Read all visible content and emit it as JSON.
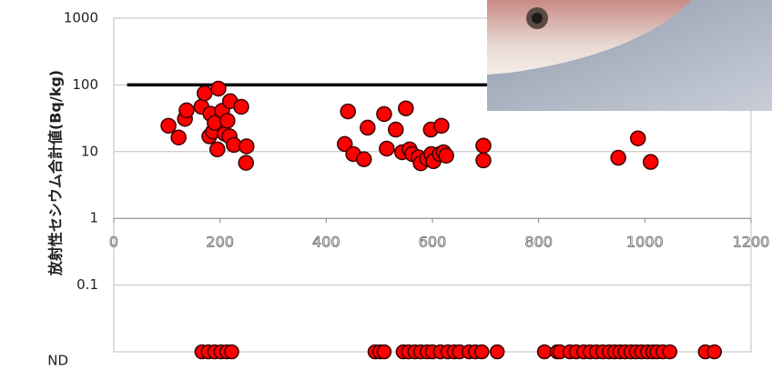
{
  "chart_data": {
    "type": "scatter",
    "ylabel": "放射性セシウム合計値(Bq/kg)",
    "xlim": [
      0,
      1200
    ],
    "xticks": [
      0,
      200,
      400,
      600,
      800,
      1000,
      1200
    ],
    "ylim": [
      0.01,
      1000
    ],
    "log_y": true,
    "yticks": [
      {
        "value": 0.01,
        "label": "ND"
      },
      0.1,
      1,
      10,
      100,
      1000
    ],
    "x_axis_at": 1,
    "grid": true,
    "color": "#ff0000",
    "limit_line": {
      "value": 100,
      "x": [
        25,
        1200
      ],
      "color": "#000000"
    },
    "x": [
      103,
      122,
      134,
      137,
      165,
      171,
      180,
      187,
      182,
      190,
      197,
      195,
      204,
      209,
      214,
      219,
      218,
      226,
      240,
      250,
      249,
      435,
      441,
      451,
      471,
      478,
      509,
      514,
      531,
      543,
      550,
      557,
      562,
      574,
      578,
      590,
      598,
      597,
      602,
      614,
      617,
      621,
      626,
      696,
      696,
      950,
      987,
      1011
    ],
    "y": [
      24.4,
      16.3,
      31,
      41.5,
      47,
      75,
      17,
      20,
      37,
      27,
      88,
      10.8,
      41,
      18.5,
      29,
      57,
      17,
      12.6,
      47,
      12,
      6.8,
      13,
      40,
      9.2,
      7.7,
      22.9,
      36.6,
      11.1,
      21.4,
      9.8,
      44.5,
      10.8,
      9.2,
      8.2,
      6.7,
      7.9,
      9.2,
      21.4,
      7.2,
      9.2,
      24.4,
      9.8,
      8.7,
      12.3,
      7.4,
      8.1,
      15.8,
      7.0
    ],
    "nd_x": [
      166,
      178,
      190,
      202,
      213,
      222,
      492,
      501,
      509,
      545,
      555,
      567,
      578,
      590,
      600,
      615,
      629,
      641,
      651,
      669,
      681,
      693,
      722,
      811,
      835,
      840,
      859,
      871,
      885,
      897,
      909,
      921,
      933,
      943,
      953,
      963,
      974,
      984,
      994,
      1005,
      1015,
      1023,
      1034,
      1047,
      1114,
      1131
    ]
  }
}
